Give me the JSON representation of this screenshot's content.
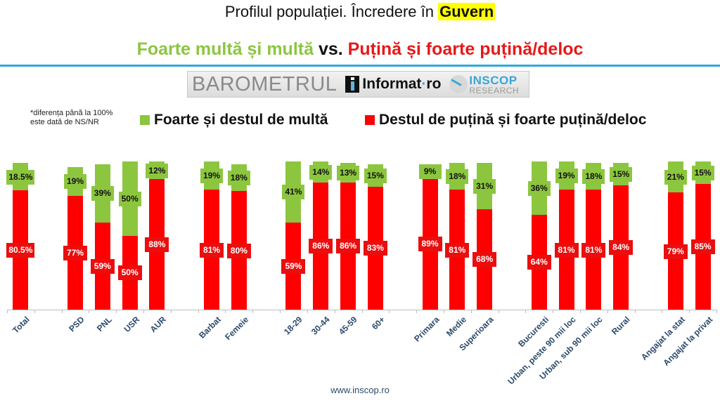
{
  "header": {
    "title_prefix": "Profilul populației. Încredere în ",
    "title_highlight": "Guvern",
    "subtitle_green": "Foarte multă și multă",
    "subtitle_vs": " vs. ",
    "subtitle_red": "Puțină și foarte puțină/deloc"
  },
  "banner": {
    "barometrul": "BAROMETRUL",
    "informat": "Informat",
    "informat_dot": "·",
    "informat_ro": "ro",
    "inscop_top": "INSCOP",
    "inscop_bottom": "RESEARCH"
  },
  "note": {
    "line1": "*diferența până la 100%",
    "line2": "este dată de NS/NR"
  },
  "footer": {
    "url": "www.inscop.ro"
  },
  "colors": {
    "green": "#8cc63f",
    "red": "#ff0000",
    "axis_label": "#2b4a6b",
    "rule": "#2eaad8",
    "highlight": "#ffff00"
  },
  "chart_data": {
    "type": "bar",
    "stacked": true,
    "title": "Profilul populației. Încredere în Guvern",
    "subtitle": "Foarte multă și multă vs. Puțină și foarte puțină/deloc",
    "note": "*diferența până la 100% este dată de NS/NR",
    "xlabel": "",
    "ylabel": "",
    "ylim": [
      0,
      100
    ],
    "grid": false,
    "legend_position": "top",
    "categories": [
      "Total",
      "PSD",
      "PNL",
      "USR",
      "AUR",
      "Barbat",
      "Femeie",
      "18-29",
      "30-44",
      "45-59",
      "60+",
      "Primara",
      "Medie",
      "Superioara",
      "Bucuresti",
      "Urban, peste 90 mii loc",
      "Urban, sub 90 mii loc",
      "Rural",
      "Angajat la stat",
      "Angajat la privat"
    ],
    "slots": [
      0,
      2,
      3,
      4,
      5,
      7,
      8,
      10,
      11,
      12,
      13,
      15,
      16,
      17,
      19,
      20,
      21,
      22,
      24,
      25
    ],
    "series": [
      {
        "name": "Destul de puțină și foarte puțină/deloc",
        "color": "#ff0000",
        "values": [
          80.5,
          77,
          59,
          50,
          88,
          81,
          80,
          59,
          86,
          86,
          83,
          89,
          81,
          68,
          64,
          81,
          81,
          84,
          79,
          85
        ],
        "labels": [
          "80.5%",
          "77%",
          "59%",
          "50%",
          "88%",
          "81%",
          "80%",
          "59%",
          "86%",
          "86%",
          "83%",
          "89%",
          "81%",
          "68%",
          "64%",
          "81%",
          "81%",
          "84%",
          "79%",
          "85%"
        ]
      },
      {
        "name": "Foarte și destul de multă",
        "color": "#8cc63f",
        "values": [
          18.5,
          19,
          39,
          50,
          12,
          19,
          18,
          41,
          14,
          13,
          15,
          9,
          18,
          31,
          36,
          19,
          18,
          15,
          21,
          15
        ],
        "labels": [
          "18.5%",
          "19%",
          "39%",
          "50%",
          "12%",
          "19%",
          "18%",
          "41%",
          "14%",
          "13%",
          "15%",
          "9%",
          "18%",
          "31%",
          "36%",
          "19%",
          "18%",
          "15%",
          "21%",
          "15%"
        ]
      }
    ]
  }
}
